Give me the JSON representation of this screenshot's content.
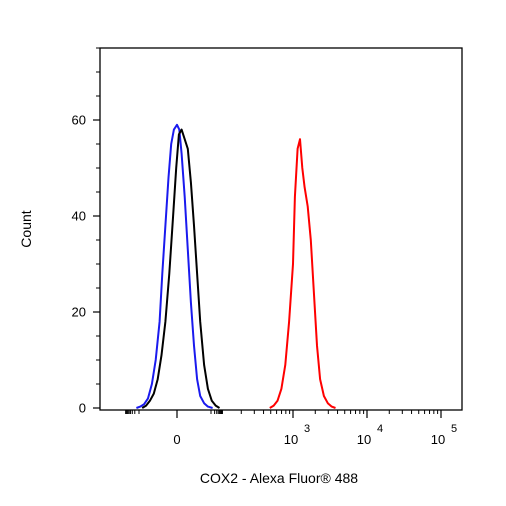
{
  "chart_data": {
    "type": "line",
    "title": "",
    "xlabel": "COX2 - Alexa Fluor® 488",
    "ylabel": "Count",
    "ylim": [
      0,
      75
    ],
    "y_ticks": [
      0,
      20,
      40,
      60
    ],
    "x_scale": "biexponential",
    "x_tick_labels": [
      {
        "base": "0",
        "exp": ""
      },
      {
        "base": "10",
        "exp": "3"
      },
      {
        "base": "10",
        "exp": "4"
      },
      {
        "base": "10",
        "exp": "5"
      }
    ],
    "grid": false,
    "legend": "none",
    "series": [
      {
        "color": "#1a1aee",
        "x": [
          -1.05,
          -0.95,
          -0.85,
          -0.75,
          -0.65,
          -0.55,
          -0.45,
          -0.38,
          -0.3,
          -0.22,
          -0.15,
          -0.08,
          0.0,
          0.06,
          0.12,
          0.2,
          0.28,
          0.36,
          0.44,
          0.52,
          0.6,
          0.7,
          0.8,
          0.92
        ],
        "y": [
          0,
          0.3,
          0.8,
          2,
          5,
          10,
          18,
          28,
          38,
          48,
          55,
          58,
          59,
          58,
          53,
          44,
          33,
          22,
          13,
          6,
          2.5,
          1,
          0.3,
          0
        ]
      },
      {
        "color": "#000000",
        "x": [
          -0.9,
          -0.8,
          -0.7,
          -0.6,
          -0.5,
          -0.4,
          -0.3,
          -0.2,
          -0.1,
          -0.02,
          0.05,
          0.12,
          0.2,
          0.28,
          0.36,
          0.44,
          0.52,
          0.6,
          0.7,
          0.8,
          0.9,
          1.0,
          1.1
        ],
        "y": [
          0,
          0.5,
          1.5,
          3,
          6,
          11,
          18,
          28,
          40,
          50,
          57,
          58,
          56,
          54,
          47,
          38,
          28,
          18,
          9,
          4,
          1.5,
          0.5,
          0
        ]
      },
      {
        "color": "#ff0000",
        "x": [
          2.4,
          2.5,
          2.6,
          2.7,
          2.8,
          2.9,
          3.0,
          3.05,
          3.12,
          3.18,
          3.24,
          3.3,
          3.38,
          3.46,
          3.54,
          3.62,
          3.7,
          3.8,
          3.9,
          4.0,
          4.1
        ],
        "y": [
          0,
          0.5,
          1.5,
          4,
          9,
          18,
          30,
          44,
          54,
          56,
          50,
          46,
          42,
          35,
          24,
          13,
          6,
          2.5,
          1,
          0.3,
          0
        ]
      }
    ]
  }
}
